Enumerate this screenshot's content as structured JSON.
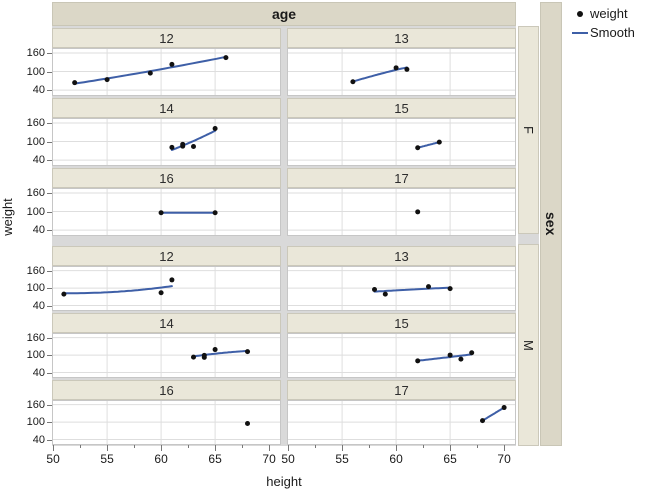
{
  "facet_headers": {
    "age_label": "age",
    "sex_label": "sex",
    "sex_groups": [
      "F",
      "M"
    ]
  },
  "legend": {
    "items": [
      {
        "icon": "dot-marker-icon",
        "label": "weight"
      },
      {
        "icon": "smooth-line-icon",
        "label": "Smooth"
      }
    ]
  },
  "axes": {
    "x": {
      "title": "height",
      "major_ticks": [
        50,
        55,
        60,
        65,
        70
      ],
      "minor_ticks": [
        52.5,
        57.5,
        62.5,
        67.5
      ],
      "domain": [
        49.9,
        71.1
      ]
    },
    "y": {
      "title": "weight",
      "major_ticks": [
        160,
        100,
        40
      ],
      "domain": [
        21,
        176
      ]
    }
  },
  "colors": {
    "smooth_line": "#3e5fa7",
    "marker": "#111111",
    "strip_dark": "#dbd7c7",
    "strip_light": "#eae7d9",
    "gap_gray": "#d9d9d9",
    "grid": "#dedede",
    "plot_border": "#c6c6c6",
    "text": "#1a1a1a"
  },
  "chart_data": {
    "type": "scatter",
    "x_var": "height",
    "y_var": "weight",
    "col_facet": "age",
    "row_facet": "sex",
    "xlim": [
      49.9,
      71.1
    ],
    "ylim": [
      21,
      176
    ],
    "x_ticks": [
      50,
      55,
      60,
      65,
      70
    ],
    "y_ticks": [
      40,
      100,
      160
    ],
    "grid": "major-only",
    "legend_position": "top-right",
    "series_legend": [
      "weight",
      "Smooth"
    ],
    "facets": [
      {
        "sex": "F",
        "age": "12",
        "points": [
          [
            52,
            64
          ],
          [
            55,
            74
          ],
          [
            59,
            95
          ],
          [
            61,
            123
          ],
          [
            66,
            145
          ]
        ],
        "smooth": true
      },
      {
        "sex": "F",
        "age": "13",
        "points": [
          [
            56,
            67
          ],
          [
            60,
            112
          ],
          [
            61,
            107
          ]
        ],
        "smooth": true
      },
      {
        "sex": "F",
        "age": "14",
        "points": [
          [
            61,
            81
          ],
          [
            62,
            85
          ],
          [
            62,
            91
          ],
          [
            63,
            84
          ],
          [
            65,
            142
          ]
        ],
        "smooth": true
      },
      {
        "sex": "F",
        "age": "15",
        "points": [
          [
            62,
            80
          ],
          [
            64,
            98
          ]
        ],
        "smooth": true
      },
      {
        "sex": "F",
        "age": "16",
        "points": [
          [
            60,
            96
          ],
          [
            65,
            96
          ]
        ],
        "smooth": true
      },
      {
        "sex": "F",
        "age": "17",
        "points": [
          [
            62,
            99
          ]
        ],
        "smooth": false
      },
      {
        "sex": "M",
        "age": "12",
        "points": [
          [
            51,
            79
          ],
          [
            60,
            84
          ],
          [
            61,
            128
          ]
        ],
        "smooth": true
      },
      {
        "sex": "M",
        "age": "13",
        "points": [
          [
            58,
            95
          ],
          [
            59,
            79
          ],
          [
            63,
            105
          ],
          [
            65,
            98
          ]
        ],
        "smooth": true
      },
      {
        "sex": "M",
        "age": "14",
        "points": [
          [
            63,
            93
          ],
          [
            64,
            92
          ],
          [
            64,
            99
          ],
          [
            65,
            119
          ],
          [
            68,
            112
          ]
        ],
        "smooth": true
      },
      {
        "sex": "M",
        "age": "15",
        "points": [
          [
            62,
            80
          ],
          [
            65,
            100
          ],
          [
            66,
            86
          ],
          [
            67,
            108
          ]
        ],
        "smooth": true
      },
      {
        "sex": "M",
        "age": "16",
        "points": [
          [
            68,
            95
          ]
        ],
        "smooth": false
      },
      {
        "sex": "M",
        "age": "17",
        "points": [
          [
            68,
            105
          ],
          [
            70,
            150
          ]
        ],
        "smooth": true
      }
    ]
  }
}
